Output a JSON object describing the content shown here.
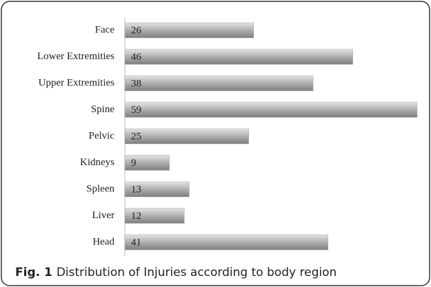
{
  "chart_data": {
    "type": "bar",
    "orientation": "horizontal",
    "categories": [
      "Face",
      "Lower Extremities",
      "Upper Extremities",
      "Spine",
      "Pelvic",
      "Kidneys",
      "Spleen",
      "Liver",
      "Head"
    ],
    "values": [
      26,
      46,
      38,
      59,
      25,
      9,
      13,
      12,
      41
    ],
    "color": "#a6a6a6",
    "caption_label": "Fig. 1",
    "caption": "Distribution of Injuries according to body region"
  }
}
